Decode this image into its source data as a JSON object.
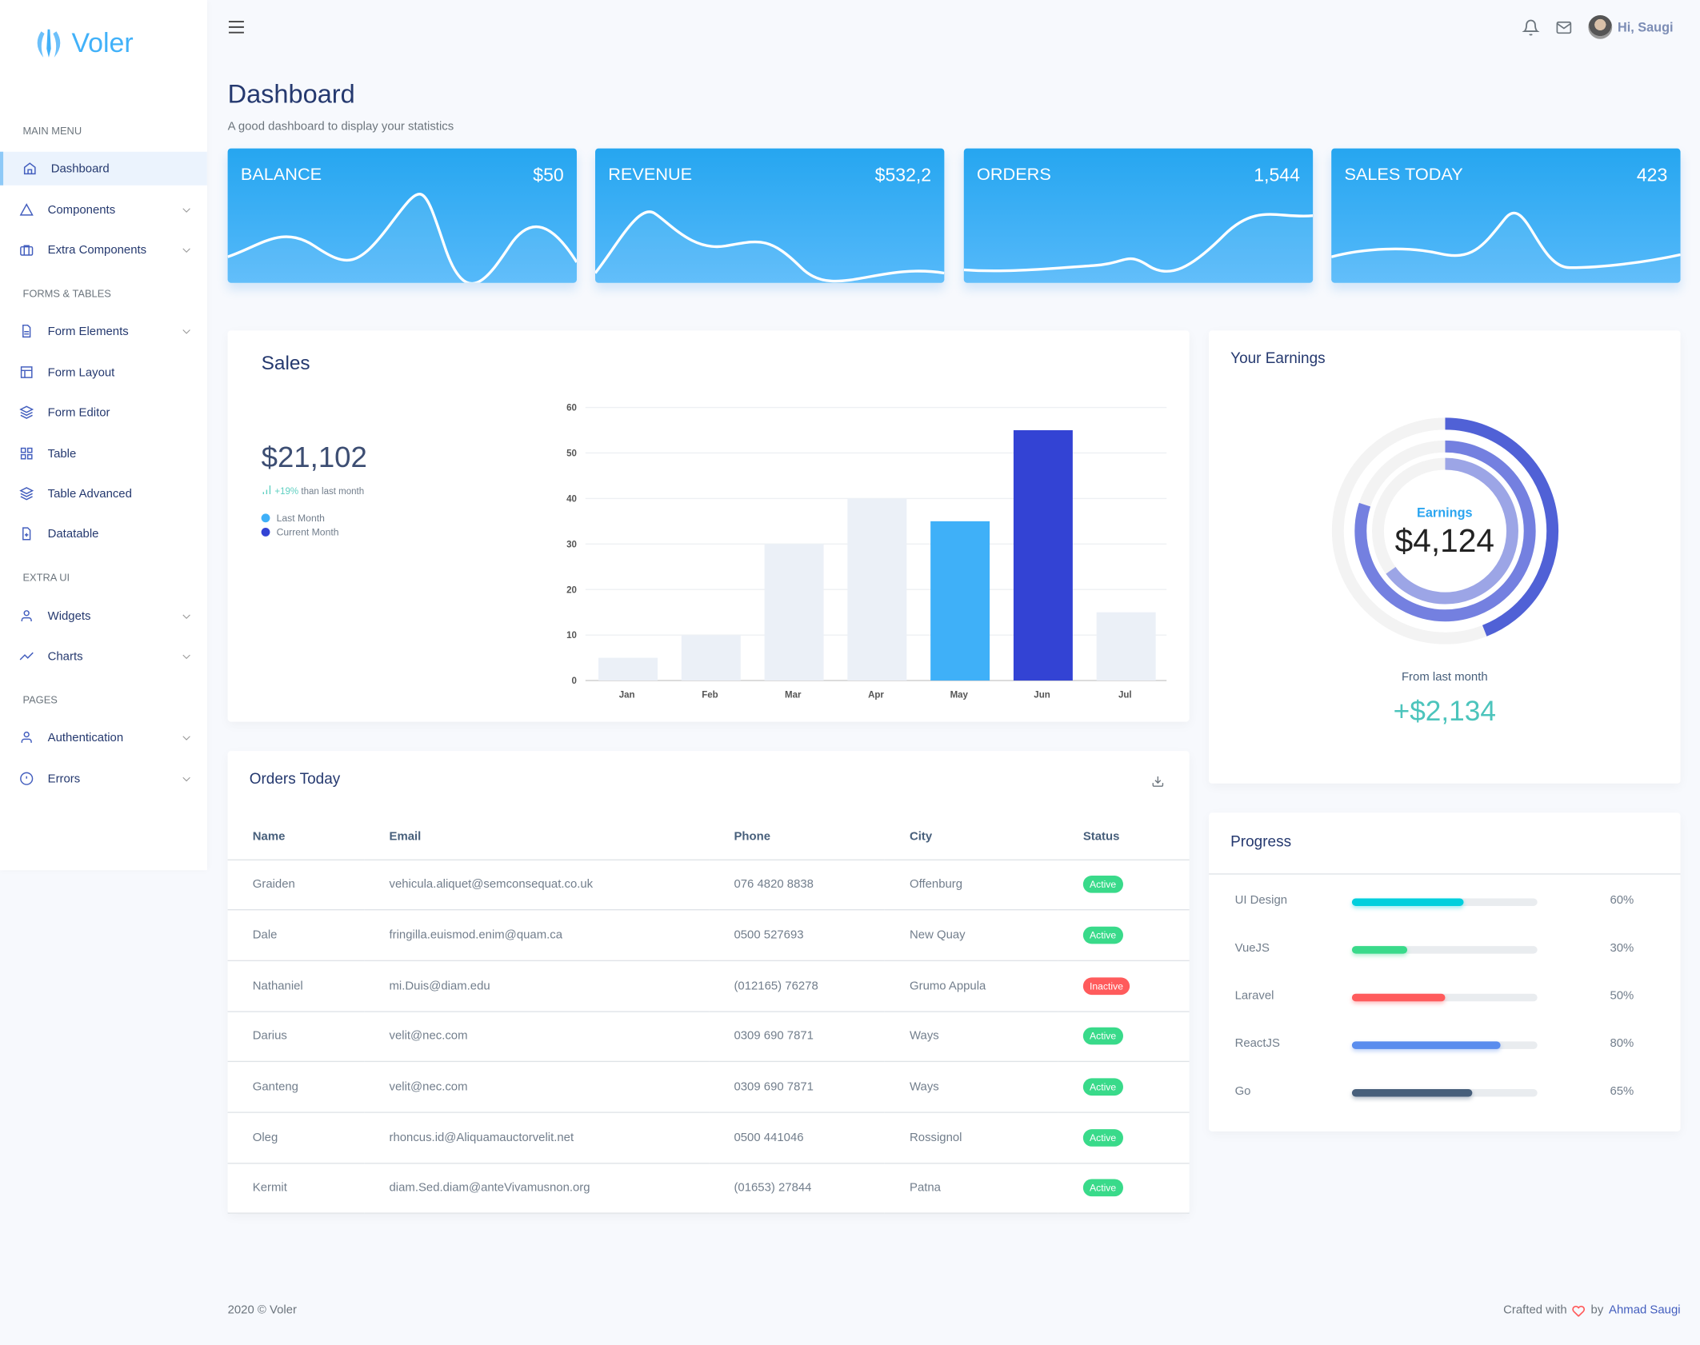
{
  "app": {
    "logo_text": "Voler",
    "brand_color": "#41b1f9"
  },
  "sidebar": {
    "sections": [
      {
        "title": "MAIN MENU"
      },
      {
        "title": "FORMS & TABLES"
      },
      {
        "title": "EXTRA UI"
      },
      {
        "title": "PAGES"
      }
    ],
    "items": [
      {
        "label": "Dashboard",
        "icon": "home-icon",
        "active": true
      },
      {
        "label": "Components",
        "icon": "triangle-icon",
        "dropdown": true
      },
      {
        "label": "Extra Components",
        "icon": "briefcase-icon",
        "dropdown": true
      },
      {
        "label": "Form Elements",
        "icon": "file-text-icon",
        "dropdown": true
      },
      {
        "label": "Form Layout",
        "icon": "layout-icon"
      },
      {
        "label": "Form Editor",
        "icon": "layers-icon"
      },
      {
        "label": "Table",
        "icon": "grid-icon"
      },
      {
        "label": "Table Advanced",
        "icon": "layers-icon"
      },
      {
        "label": "Datatable",
        "icon": "file-plus-icon"
      },
      {
        "label": "Widgets",
        "icon": "user-icon",
        "dropdown": true
      },
      {
        "label": "Charts",
        "icon": "trending-up-icon",
        "dropdown": true
      },
      {
        "label": "Authentication",
        "icon": "user-icon",
        "dropdown": true
      },
      {
        "label": "Errors",
        "icon": "alert-circle-icon",
        "dropdown": true
      }
    ]
  },
  "header": {
    "greeting": "Hi, Saugi"
  },
  "page": {
    "title": "Dashboard",
    "subtitle": "A good dashboard to display your statistics"
  },
  "stats": [
    {
      "title": "BALANCE",
      "value": "$50"
    },
    {
      "title": "REVENUE",
      "value": "$532,2"
    },
    {
      "title": "ORDERS",
      "value": "1,544"
    },
    {
      "title": "SALES TODAY",
      "value": "423"
    }
  ],
  "sales": {
    "title": "Sales",
    "total": "$21,102",
    "change": "+19%",
    "change_text": "than last month",
    "legend": [
      {
        "name": "Last Month",
        "color": "#3fb0f8"
      },
      {
        "name": "Current Month",
        "color": "#3343d4"
      }
    ]
  },
  "chart_data": {
    "type": "bar",
    "categories": [
      "Jan",
      "Feb",
      "Mar",
      "Apr",
      "May",
      "Jun",
      "Jul"
    ],
    "values": [
      5,
      10,
      30,
      40,
      35,
      55,
      15
    ],
    "colors": [
      "#ebf0f7",
      "#ebf0f7",
      "#ebf0f7",
      "#ebf0f7",
      "#3fb0f8",
      "#3343d4",
      "#ebf0f7"
    ],
    "yticks": [
      0,
      10,
      20,
      30,
      40,
      50,
      60
    ],
    "ylim": [
      0,
      60
    ],
    "grid": true
  },
  "earnings": {
    "title": "Your Earnings",
    "center_label": "Earnings",
    "center_value": "$4,124",
    "from_label": "From last month",
    "from_value": "+$2,134",
    "rings": [
      {
        "percent": 44,
        "color": "#5061d6"
      },
      {
        "percent": 80,
        "color": "#7480e0"
      },
      {
        "percent": 65,
        "color": "#9ca5e6"
      }
    ]
  },
  "orders": {
    "title": "Orders Today",
    "columns": [
      "Name",
      "Email",
      "Phone",
      "City",
      "Status"
    ],
    "rows": [
      [
        "Graiden",
        "vehicula.aliquet@semconsequat.co.uk",
        "076 4820 8838",
        "Offenburg",
        "Active"
      ],
      [
        "Dale",
        "fringilla.euismod.enim@quam.ca",
        "0500 527693",
        "New Quay",
        "Active"
      ],
      [
        "Nathaniel",
        "mi.Duis@diam.edu",
        "(012165) 76278",
        "Grumo Appula",
        "Inactive"
      ],
      [
        "Darius",
        "velit@nec.com",
        "0309 690 7871",
        "Ways",
        "Active"
      ],
      [
        "Ganteng",
        "velit@nec.com",
        "0309 690 7871",
        "Ways",
        "Active"
      ],
      [
        "Oleg",
        "rhoncus.id@Aliquamauctorvelit.net",
        "0500 441046",
        "Rossignol",
        "Active"
      ],
      [
        "Kermit",
        "diam.Sed.diam@anteVivamusnon.org",
        "(01653) 27844",
        "Patna",
        "Active"
      ]
    ]
  },
  "progress": {
    "title": "Progress",
    "items": [
      {
        "name": "UI Design",
        "label": "60%",
        "value": 60,
        "color": "#00cfdd"
      },
      {
        "name": "VueJS",
        "label": "30%",
        "value": 30,
        "color": "#39da8a"
      },
      {
        "name": "Laravel",
        "label": "50%",
        "value": 50,
        "color": "#ff5b5c"
      },
      {
        "name": "ReactJS",
        "label": "80%",
        "value": 80,
        "color": "#5a8dee"
      },
      {
        "name": "Go",
        "label": "65%",
        "value": 65,
        "color": "#475f7b"
      }
    ]
  },
  "footer": {
    "copyright": "2020 © Voler",
    "crafted": "Crafted with",
    "by": "by",
    "author": "Ahmad Saugi"
  }
}
